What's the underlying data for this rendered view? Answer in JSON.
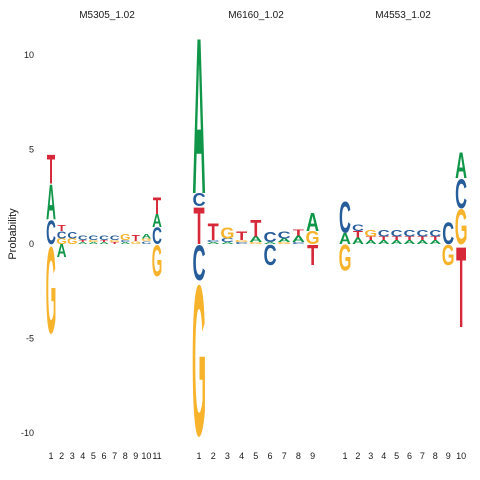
{
  "colors": {
    "A": "#109648",
    "C": "#255C99",
    "G": "#F7B32B",
    "T": "#D62839"
  },
  "chart_data": {
    "type": "sequence-logo",
    "ylabel": "Probability",
    "ylim": [
      -10.5,
      12
    ],
    "yticks": [
      -10,
      -5,
      0,
      5,
      10
    ],
    "ytick_labels": [
      "-10",
      "-5",
      "0",
      "5",
      "10"
    ],
    "panels": [
      {
        "title": "M5305_1.02",
        "x_labels": [
          "1",
          "2",
          "3",
          "4",
          "5",
          "6",
          "7",
          "8",
          "9",
          "10",
          "11"
        ],
        "positions": [
          {
            "pos": [
              [
                "C",
                1.3
              ],
              [
                "A",
                1.9
              ],
              [
                "T",
                1.6
              ]
            ],
            "neg": [
              [
                "G",
                4.7
              ]
            ]
          },
          {
            "pos": [
              [
                "G",
                0.3
              ],
              [
                "C",
                0.4
              ],
              [
                "T",
                0.3
              ]
            ],
            "neg": [
              [
                "A",
                0.7
              ]
            ]
          },
          {
            "pos": [
              [
                "G",
                0.3
              ],
              [
                "C",
                0.35
              ]
            ],
            "neg": []
          },
          {
            "pos": [
              [
                "A",
                0.1
              ],
              [
                "T",
                0.1
              ],
              [
                "C",
                0.25
              ]
            ],
            "neg": []
          },
          {
            "pos": [
              [
                "A",
                0.1
              ],
              [
                "G",
                0.1
              ],
              [
                "C",
                0.25
              ]
            ],
            "neg": []
          },
          {
            "pos": [
              [
                "A",
                0.1
              ],
              [
                "T",
                0.1
              ],
              [
                "C",
                0.25
              ]
            ],
            "neg": []
          },
          {
            "pos": [
              [
                "T",
                0.1
              ],
              [
                "G",
                0.1
              ],
              [
                "C",
                0.25
              ]
            ],
            "neg": []
          },
          {
            "pos": [
              [
                "A",
                0.1
              ],
              [
                "C",
                0.1
              ],
              [
                "G",
                0.3
              ]
            ],
            "neg": []
          },
          {
            "pos": [
              [
                "G",
                0.15
              ],
              [
                "T",
                0.3
              ]
            ],
            "neg": []
          },
          {
            "pos": [
              [
                "C",
                0.15
              ],
              [
                "G",
                0.15
              ],
              [
                "A",
                0.25
              ]
            ],
            "neg": []
          },
          {
            "pos": [
              [
                "C",
                0.9
              ],
              [
                "A",
                0.7
              ],
              [
                "T",
                0.9
              ]
            ],
            "neg": [
              [
                "G",
                1.7
              ]
            ]
          }
        ]
      },
      {
        "title": "M6160_1.02",
        "x_labels": [
          "1",
          "2",
          "3",
          "4",
          "5",
          "6",
          "7",
          "8",
          "9"
        ],
        "positions": [
          {
            "pos": [
              [
                "T",
                2.0
              ],
              [
                "C",
                0.7
              ],
              [
                "A",
                8.5
              ]
            ],
            "neg": [
              [
                "C",
                1.9
              ],
              [
                "G",
                8.2
              ]
            ]
          },
          {
            "pos": [
              [
                "A",
                0.1
              ],
              [
                "C",
                0.1
              ],
              [
                "T",
                0.9
              ]
            ],
            "neg": []
          },
          {
            "pos": [
              [
                "A",
                0.1
              ],
              [
                "C",
                0.2
              ],
              [
                "G",
                0.6
              ]
            ],
            "neg": []
          },
          {
            "pos": [
              [
                "C",
                0.1
              ],
              [
                "G",
                0.1
              ],
              [
                "T",
                0.45
              ]
            ],
            "neg": []
          },
          {
            "pos": [
              [
                "G",
                0.1
              ],
              [
                "A",
                0.3
              ],
              [
                "T",
                0.9
              ]
            ],
            "neg": []
          },
          {
            "pos": [
              [
                "A",
                0.1
              ],
              [
                "C",
                0.55
              ]
            ],
            "neg": [
              [
                "C",
                1.1
              ]
            ]
          },
          {
            "pos": [
              [
                "G",
                0.1
              ],
              [
                "A",
                0.2
              ],
              [
                "C",
                0.4
              ]
            ],
            "neg": []
          },
          {
            "pos": [
              [
                "C",
                0.1
              ],
              [
                "A",
                0.35
              ],
              [
                "T",
                0.3
              ]
            ],
            "neg": []
          },
          {
            "pos": [
              [
                "G",
                0.7
              ],
              [
                "A",
                1.0
              ]
            ],
            "neg": [
              [
                "T",
                1.1
              ]
            ]
          }
        ]
      },
      {
        "title": "M4553_1.02",
        "x_labels": [
          "1",
          "2",
          "3",
          "4",
          "5",
          "6",
          "7",
          "8",
          "9",
          "10"
        ],
        "positions": [
          {
            "pos": [
              [
                "A",
                0.6
              ],
              [
                "C",
                1.7
              ]
            ],
            "neg": [
              [
                "G",
                1.4
              ]
            ]
          },
          {
            "pos": [
              [
                "A",
                0.35
              ],
              [
                "T",
                0.35
              ],
              [
                "C",
                0.35
              ]
            ],
            "neg": []
          },
          {
            "pos": [
              [
                "A",
                0.2
              ],
              [
                "T",
                0.2
              ],
              [
                "G",
                0.35
              ]
            ],
            "neg": []
          },
          {
            "pos": [
              [
                "A",
                0.2
              ],
              [
                "T",
                0.2
              ],
              [
                "C",
                0.35
              ]
            ],
            "neg": []
          },
          {
            "pos": [
              [
                "A",
                0.2
              ],
              [
                "T",
                0.2
              ],
              [
                "C",
                0.35
              ]
            ],
            "neg": []
          },
          {
            "pos": [
              [
                "A",
                0.2
              ],
              [
                "T",
                0.2
              ],
              [
                "C",
                0.35
              ]
            ],
            "neg": []
          },
          {
            "pos": [
              [
                "A",
                0.2
              ],
              [
                "T",
                0.2
              ],
              [
                "C",
                0.35
              ]
            ],
            "neg": []
          },
          {
            "pos": [
              [
                "A",
                0.2
              ],
              [
                "T",
                0.2
              ],
              [
                "C",
                0.35
              ]
            ],
            "neg": []
          },
          {
            "pos": [
              [
                "C",
                1.2
              ]
            ],
            "neg": [
              [
                "G",
                1.1
              ]
            ]
          },
          {
            "pos": [
              [
                "G",
                1.9
              ],
              [
                "C",
                1.6
              ],
              [
                "A",
                1.4
              ]
            ],
            "neg": [
              [
                "T",
                4.4
              ]
            ]
          }
        ]
      }
    ]
  }
}
